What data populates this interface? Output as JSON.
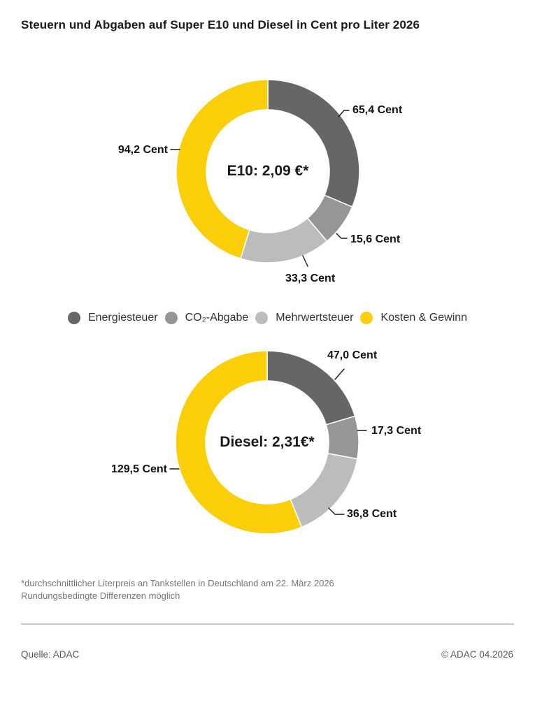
{
  "title": "Steuern und Abgaben auf Super E10 und Diesel in Cent pro Liter 2026",
  "legend": {
    "items": [
      {
        "label": "Energiesteuer",
        "color": "#666666"
      },
      {
        "label": "CO₂-Abgabe",
        "color": "#969696"
      },
      {
        "label": "Mehrwertsteuer",
        "color": "#bcbcbc"
      },
      {
        "label": "Kosten & Gewinn",
        "color": "#fbce0a"
      }
    ]
  },
  "chart_data": [
    {
      "type": "pie",
      "subtype": "donut",
      "title": "Super E10",
      "center_label": "E10: 2,09 €*",
      "categories": [
        "Energiesteuer",
        "CO₂-Abgabe",
        "Mehrwertsteuer",
        "Kosten & Gewinn"
      ],
      "values": [
        65.4,
        15.6,
        33.3,
        94.2
      ],
      "labels": [
        "65,4 Cent",
        "15,6 Cent",
        "33,3 Cent",
        "94,2 Cent"
      ],
      "unit": "Cent pro Liter",
      "colors": [
        "#666666",
        "#969696",
        "#bcbcbc",
        "#fbce0a"
      ],
      "start_angle_deg": 0,
      "direction": "clockwise",
      "legend_position": "bottom"
    },
    {
      "type": "pie",
      "subtype": "donut",
      "title": "Diesel",
      "center_label": "Diesel: 2,31€*",
      "categories": [
        "Energiesteuer",
        "CO₂-Abgabe",
        "Mehrwertsteuer",
        "Kosten & Gewinn"
      ],
      "values": [
        47.0,
        17.3,
        36.8,
        129.5
      ],
      "labels": [
        "47,0 Cent",
        "17,3 Cent",
        "36,8 Cent",
        "129,5 Cent"
      ],
      "unit": "Cent pro Liter",
      "colors": [
        "#666666",
        "#969696",
        "#bcbcbc",
        "#fbce0a"
      ],
      "start_angle_deg": 0,
      "direction": "clockwise",
      "legend_position": "shared"
    }
  ],
  "footnote": {
    "line1": "*durchschnittlicher Literpreis an Tankstellen in Deutschland am 22. März 2026",
    "line2": "Rundungsbedingte Differenzen möglich"
  },
  "footer": {
    "source": "Quelle: ADAC",
    "copyright": "© ADAC 04.2026"
  }
}
